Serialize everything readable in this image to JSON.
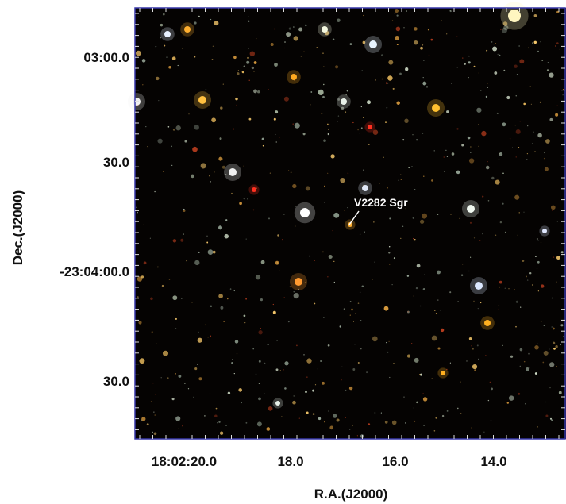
{
  "image": {
    "annotation": "V2282 Sgr",
    "x_axis": {
      "label": "R.A.(J2000)",
      "tick_labels": [
        "18:02:20.0",
        "18.0",
        "16.0",
        "14.0"
      ]
    },
    "y_axis": {
      "label": "Dec.(J2000)",
      "tick_labels": [
        "03:00.0",
        "30.0",
        "-23:04:00.0",
        "30.0"
      ]
    }
  }
}
